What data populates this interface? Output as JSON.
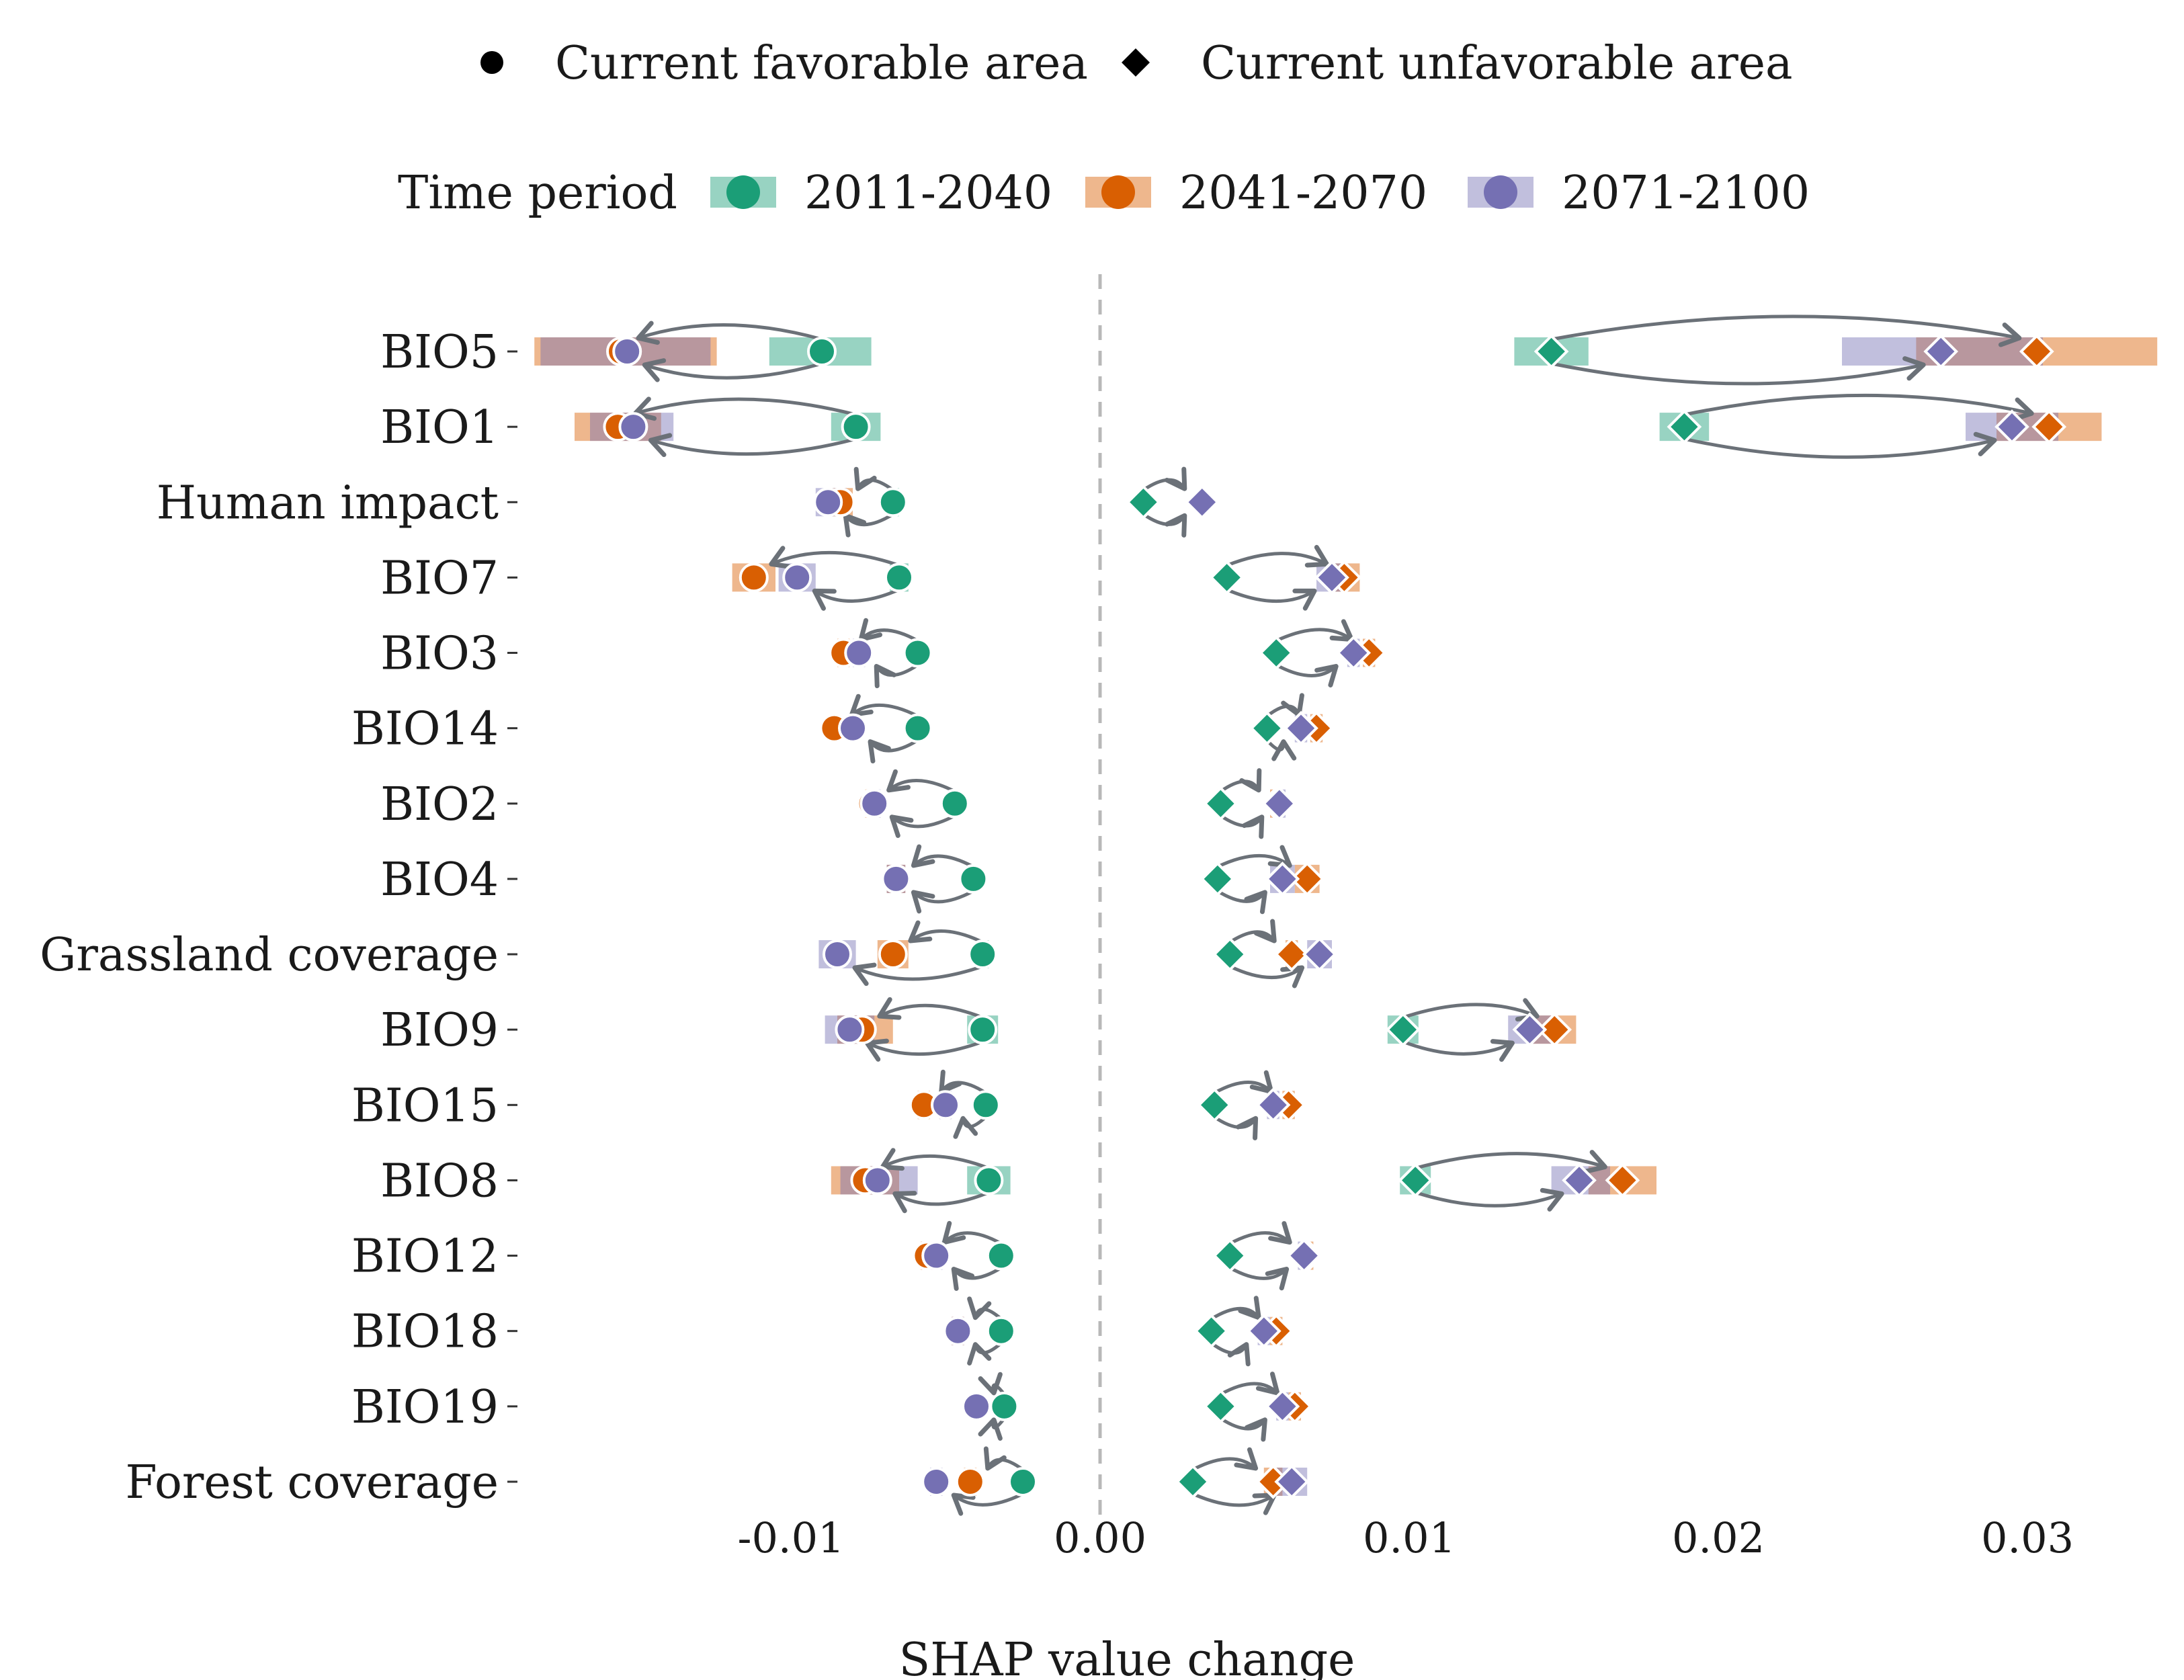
{
  "legend": {
    "shape_title": "",
    "shape_items": [
      {
        "label": "Current favorable area",
        "shape": "circle"
      },
      {
        "label": "Current unfavorable area",
        "shape": "diamond"
      }
    ],
    "period_title": "Time period",
    "period_items": [
      {
        "label": "2011-2040",
        "color": "#1b9e77"
      },
      {
        "label": "2041-2070",
        "color": "#d95f02"
      },
      {
        "label": "2071-2100",
        "color": "#7570b3"
      }
    ]
  },
  "chart_data": {
    "type": "scatter",
    "xlabel": "SHAP value change",
    "ylabel": "",
    "xlim": [
      -0.0182,
      0.0342
    ],
    "xticks": [
      -0.01,
      0.0,
      0.01,
      0.02,
      0.03
    ],
    "xtick_labels": [
      "-0.01",
      "0.00",
      "0.01",
      "0.02",
      "0.03"
    ],
    "zero_line": "dashed",
    "grid": false,
    "legend_position": "top",
    "series_names": [
      "2011-2040",
      "2041-2070",
      "2071-2100"
    ],
    "categories": [
      "BIO5",
      "BIO1",
      "Human impact",
      "BIO7",
      "BIO3",
      "BIO14",
      "BIO2",
      "BIO4",
      "Grassland coverage",
      "BIO9",
      "BIO15",
      "BIO8",
      "BIO12",
      "BIO18",
      "BIO19",
      "Forest coverage"
    ],
    "favorable": [
      {
        "p": [
          -0.009,
          -0.0155,
          -0.0153
        ],
        "r": [
          [
            -0.0107,
            -0.0074
          ],
          [
            -0.0183,
            -0.0124
          ],
          [
            -0.0181,
            -0.0126
          ]
        ]
      },
      {
        "p": [
          -0.0079,
          -0.0156,
          -0.0151
        ],
        "r": [
          [
            -0.0087,
            -0.0071
          ],
          [
            -0.017,
            -0.0142
          ],
          [
            -0.0165,
            -0.0138
          ]
        ]
      },
      {
        "p": [
          -0.0067,
          -0.0084,
          -0.0088
        ],
        "r": [
          [
            -0.0069,
            -0.0065
          ],
          [
            -0.0089,
            -0.008
          ],
          [
            -0.0092,
            -0.0082
          ]
        ]
      },
      {
        "p": [
          -0.0065,
          -0.0112,
          -0.0098
        ],
        "r": [
          [
            -0.0068,
            -0.0062
          ],
          [
            -0.0119,
            -0.0105
          ],
          [
            -0.0104,
            -0.0092
          ]
        ]
      },
      {
        "p": [
          -0.0059,
          -0.0083,
          -0.0078
        ],
        "r": [
          [
            -0.006,
            -0.0058
          ],
          [
            -0.0085,
            -0.0081
          ],
          [
            -0.008,
            -0.0076
          ]
        ]
      },
      {
        "p": [
          -0.0059,
          -0.0086,
          -0.008
        ],
        "r": [
          [
            -0.006,
            -0.0058
          ],
          [
            -0.0087,
            -0.0085
          ],
          [
            -0.0081,
            -0.0079
          ]
        ]
      },
      {
        "p": [
          -0.0047,
          -0.0074,
          -0.0073
        ],
        "r": [
          [
            -0.0048,
            -0.0046
          ],
          [
            -0.0076,
            -0.0072
          ],
          [
            -0.0075,
            -0.0071
          ]
        ]
      },
      {
        "p": [
          -0.0041,
          -0.0066,
          -0.0066
        ],
        "r": [
          [
            -0.0042,
            -0.004
          ],
          [
            -0.0069,
            -0.0063
          ],
          [
            -0.0069,
            -0.0063
          ]
        ]
      },
      {
        "p": [
          -0.0038,
          -0.0067,
          -0.0085
        ],
        "r": [
          [
            -0.004,
            -0.0036
          ],
          [
            -0.0072,
            -0.0062
          ],
          [
            -0.0091,
            -0.0079
          ]
        ]
      },
      {
        "p": [
          -0.0038,
          -0.0077,
          -0.0081
        ],
        "r": [
          [
            -0.0043,
            -0.0033
          ],
          [
            -0.0085,
            -0.0067
          ],
          [
            -0.0089,
            -0.0073
          ]
        ]
      },
      {
        "p": [
          -0.0037,
          -0.0057,
          -0.005
        ],
        "r": [
          [
            -0.0038,
            -0.0036
          ],
          [
            -0.0059,
            -0.0055
          ],
          [
            -0.0052,
            -0.0048
          ]
        ]
      },
      {
        "p": [
          -0.0036,
          -0.0076,
          -0.0072
        ],
        "r": [
          [
            -0.0043,
            -0.0029
          ],
          [
            -0.0087,
            -0.0065
          ],
          [
            -0.0084,
            -0.0059
          ]
        ]
      },
      {
        "p": [
          -0.0032,
          -0.0056,
          -0.0053
        ],
        "r": [
          [
            -0.0033,
            -0.0031
          ],
          [
            -0.0058,
            -0.0054
          ],
          [
            -0.0055,
            -0.0051
          ]
        ]
      },
      {
        "p": [
          -0.0032,
          -0.0046,
          -0.0046
        ],
        "r": [
          [
            -0.0033,
            -0.0031
          ],
          [
            -0.0048,
            -0.0044
          ],
          [
            -0.0048,
            -0.0044
          ]
        ]
      },
      {
        "p": [
          -0.0031,
          -0.004,
          -0.004
        ],
        "r": [
          [
            -0.0032,
            -0.003
          ],
          [
            -0.0041,
            -0.0039
          ],
          [
            -0.0041,
            -0.0039
          ]
        ]
      },
      {
        "p": [
          -0.0025,
          -0.0042,
          -0.0053
        ],
        "r": [
          [
            -0.0026,
            -0.0024
          ],
          [
            -0.0044,
            -0.004
          ],
          [
            -0.0055,
            -0.0051
          ]
        ]
      }
    ],
    "unfavorable": [
      {
        "p": [
          0.0146,
          0.0303,
          0.0272
        ],
        "r": [
          [
            0.0134,
            0.0158
          ],
          [
            0.0264,
            0.0342
          ],
          [
            0.024,
            0.0305
          ]
        ]
      },
      {
        "p": [
          0.0189,
          0.0307,
          0.0295
        ],
        "r": [
          [
            0.0181,
            0.0197
          ],
          [
            0.029,
            0.0324
          ],
          [
            0.028,
            0.031
          ]
        ]
      },
      {
        "p": [
          0.0014,
          0.0033,
          0.0033
        ],
        "r": [
          [
            0.0013,
            0.0015
          ],
          [
            0.0032,
            0.0034
          ],
          [
            0.0032,
            0.0034
          ]
        ]
      },
      {
        "p": [
          0.0041,
          0.0079,
          0.0075
        ],
        "r": [
          [
            0.004,
            0.0042
          ],
          [
            0.0074,
            0.0084
          ],
          [
            0.007,
            0.008
          ]
        ]
      },
      {
        "p": [
          0.0057,
          0.0087,
          0.0082
        ],
        "r": [
          [
            0.0056,
            0.0058
          ],
          [
            0.0085,
            0.0089
          ],
          [
            0.008,
            0.0084
          ]
        ]
      },
      {
        "p": [
          0.0054,
          0.007,
          0.0065
        ],
        "r": [
          [
            0.0053,
            0.0055
          ],
          [
            0.0068,
            0.0072
          ],
          [
            0.0063,
            0.0067
          ]
        ]
      },
      {
        "p": [
          0.0039,
          0.0057,
          0.0058
        ],
        "r": [
          [
            0.0038,
            0.004
          ],
          [
            0.0055,
            0.0059
          ],
          [
            0.0056,
            0.006
          ]
        ]
      },
      {
        "p": [
          0.0038,
          0.0067,
          0.0059
        ],
        "r": [
          [
            0.0037,
            0.0039
          ],
          [
            0.0063,
            0.0071
          ],
          [
            0.0055,
            0.0063
          ]
        ]
      },
      {
        "p": [
          0.0042,
          0.0062,
          0.0071
        ],
        "r": [
          [
            0.0041,
            0.0043
          ],
          [
            0.006,
            0.0064
          ],
          [
            0.0067,
            0.0075
          ]
        ]
      },
      {
        "p": [
          0.0098,
          0.0147,
          0.0139
        ],
        "r": [
          [
            0.0093,
            0.0103
          ],
          [
            0.014,
            0.0154
          ],
          [
            0.0132,
            0.0146
          ]
        ]
      },
      {
        "p": [
          0.0037,
          0.0061,
          0.0056
        ],
        "r": [
          [
            0.0036,
            0.0038
          ],
          [
            0.0059,
            0.0063
          ],
          [
            0.0054,
            0.0058
          ]
        ]
      },
      {
        "p": [
          0.0102,
          0.0169,
          0.0155
        ],
        "r": [
          [
            0.0097,
            0.0107
          ],
          [
            0.0158,
            0.018
          ],
          [
            0.0146,
            0.0165
          ]
        ]
      },
      {
        "p": [
          0.0042,
          0.0067,
          0.0066
        ],
        "r": [
          [
            0.0041,
            0.0043
          ],
          [
            0.0065,
            0.0069
          ],
          [
            0.0064,
            0.0068
          ]
        ]
      },
      {
        "p": [
          0.0036,
          0.0057,
          0.0053
        ],
        "r": [
          [
            0.0035,
            0.0037
          ],
          [
            0.0055,
            0.0059
          ],
          [
            0.0051,
            0.0055
          ]
        ]
      },
      {
        "p": [
          0.0039,
          0.0063,
          0.0059
        ],
        "r": [
          [
            0.0038,
            0.004
          ],
          [
            0.0061,
            0.0065
          ],
          [
            0.0057,
            0.0061
          ]
        ]
      },
      {
        "p": [
          0.003,
          0.0056,
          0.0062
        ],
        "r": [
          [
            0.0029,
            0.0031
          ],
          [
            0.0053,
            0.0059
          ],
          [
            0.0057,
            0.0067
          ]
        ]
      }
    ]
  }
}
